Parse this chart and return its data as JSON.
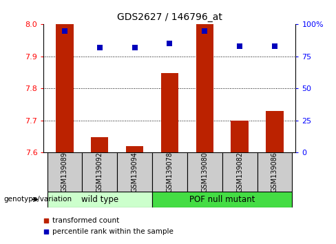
{
  "title": "GDS2627 / 146796_at",
  "samples": [
    "GSM139089",
    "GSM139092",
    "GSM139094",
    "GSM139078",
    "GSM139080",
    "GSM139082",
    "GSM139086"
  ],
  "red_values": [
    8.0,
    7.648,
    7.62,
    7.848,
    8.0,
    7.7,
    7.73
  ],
  "blue_values": [
    95,
    82,
    82,
    85,
    95,
    83,
    83
  ],
  "ylim_left": [
    7.6,
    8.0
  ],
  "ylim_right": [
    0,
    100
  ],
  "yticks_left": [
    7.6,
    7.7,
    7.8,
    7.9,
    8.0
  ],
  "yticks_right": [
    0,
    25,
    50,
    75,
    100
  ],
  "ytick_labels_right": [
    "0",
    "25",
    "50",
    "75",
    "100%"
  ],
  "bar_color": "#BB2200",
  "dot_color": "#0000BB",
  "wild_type_samples": [
    "GSM139089",
    "GSM139092",
    "GSM139094"
  ],
  "pof_samples": [
    "GSM139078",
    "GSM139080",
    "GSM139082",
    "GSM139086"
  ],
  "wild_type_label": "wild type",
  "pof_label": "POF null mutant",
  "genotype_label": "genotype/variation",
  "legend_bar_label": "transformed count",
  "legend_dot_label": "percentile rank within the sample",
  "wild_type_color": "#CCFFCC",
  "pof_color": "#44DD44",
  "label_area_color": "#CCCCCC",
  "bar_width": 0.5,
  "dot_size": 35,
  "base_value": 7.6
}
